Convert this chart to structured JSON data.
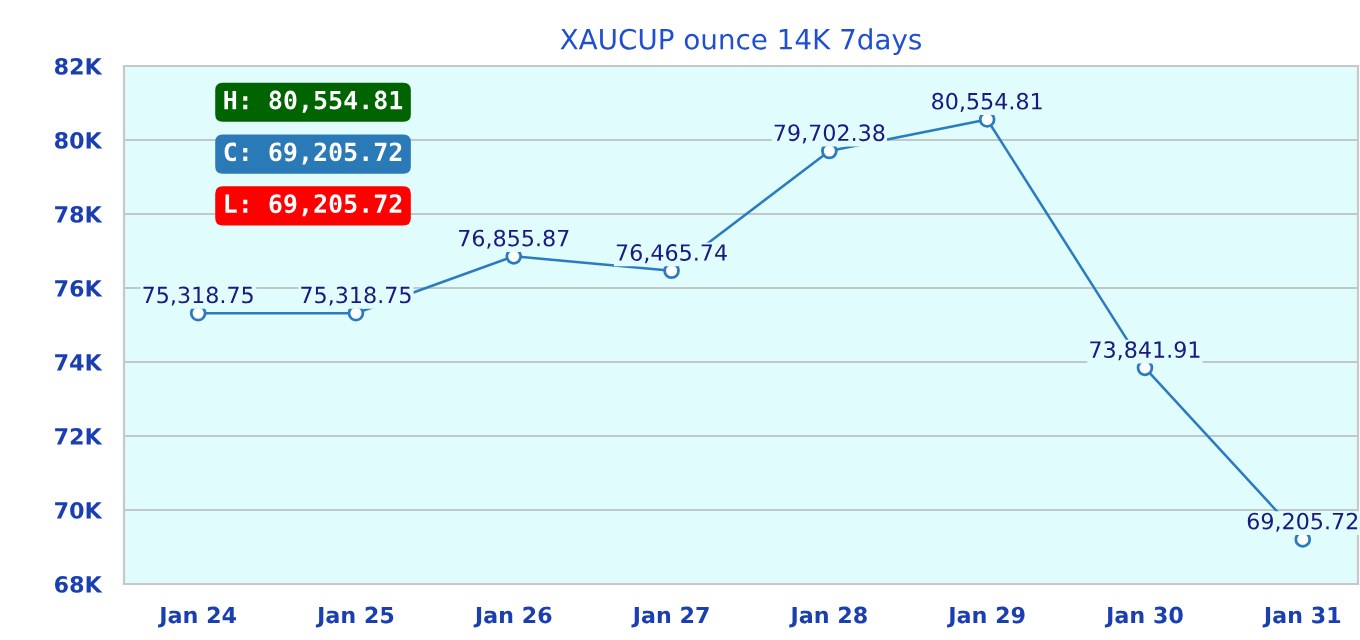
{
  "chart_data": {
    "type": "line",
    "title": "XAUCUP ounce 14K 7days",
    "categories": [
      "Jan 24",
      "Jan 25",
      "Jan 26",
      "Jan 27",
      "Jan 28",
      "Jan 29",
      "Jan 30",
      "Jan 31"
    ],
    "series": [
      {
        "color": "#2b7bc0",
        "values": [
          75318.75,
          75318.75,
          76855.87,
          76465.74,
          79702.38,
          80554.81,
          73841.91,
          69205.72
        ],
        "value_labels": [
          "75,318.75",
          "75,318.75",
          "76,855.87",
          "76,465.74",
          "79,702.38",
          "80,554.81",
          "73,841.91",
          "69,205.72"
        ]
      }
    ],
    "ylim": [
      68000,
      82000
    ],
    "yticks": [
      {
        "value": 68000,
        "label": "68K"
      },
      {
        "value": 70000,
        "label": "70K"
      },
      {
        "value": 72000,
        "label": "72K"
      },
      {
        "value": 74000,
        "label": "74K"
      },
      {
        "value": 76000,
        "label": "76K"
      },
      {
        "value": 78000,
        "label": "78K"
      },
      {
        "value": 80000,
        "label": "80K"
      },
      {
        "value": 82000,
        "label": "82K"
      }
    ],
    "grid": "y",
    "marker": "circle",
    "line_style": "solid",
    "annotations": [
      "H: 80,554.81",
      "C: 69,205.72",
      "L: 69,205.72"
    ]
  }
}
